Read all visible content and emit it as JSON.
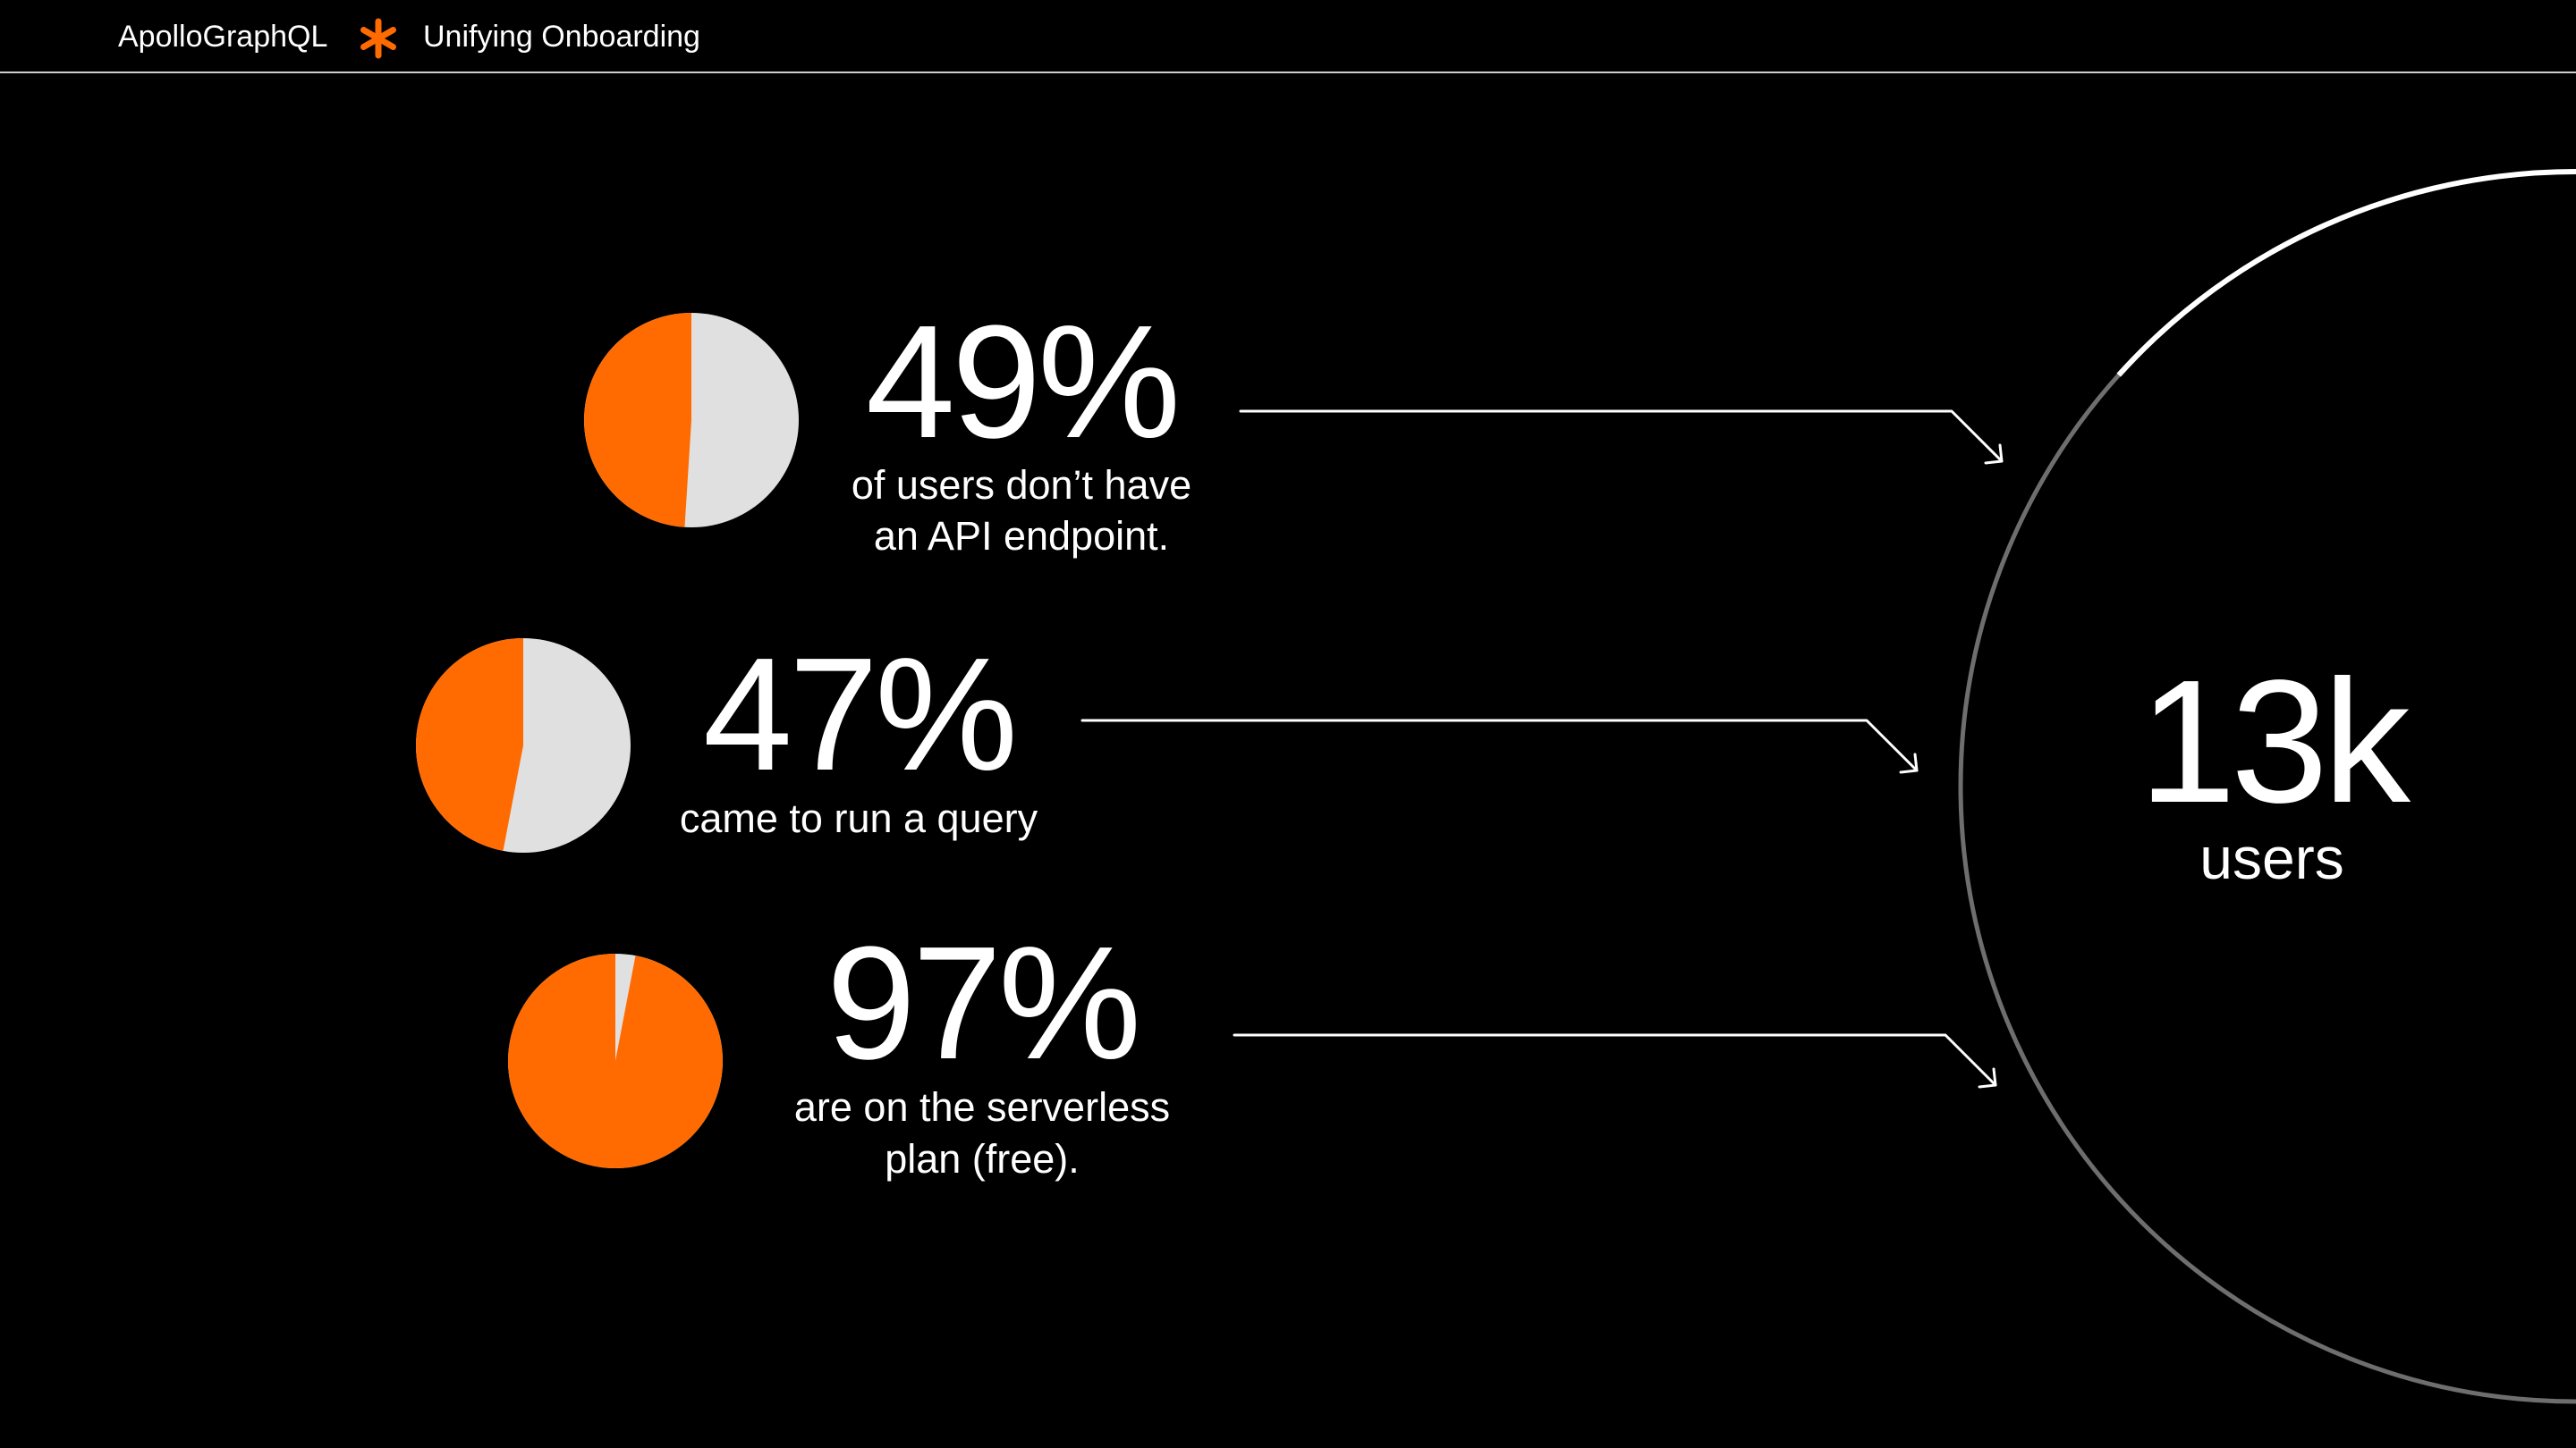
{
  "header": {
    "brand": "ApolloGraphQL",
    "deck_title": "Unifying Onboarding",
    "separator_icon": "asterisk-icon",
    "accent": "#FF6B00"
  },
  "colors": {
    "accent": "#FF6B00",
    "pie_rest": "#E0E0E0",
    "ring_highlight": "#FFFFFF",
    "ring_muted": "#6E6E6E",
    "background": "#000000"
  },
  "chart_data": {
    "type": "pie",
    "series": [
      {
        "value_label": "49%",
        "percent": 49,
        "caption_lines": [
          "of users don’t have",
          "an API endpoint."
        ]
      },
      {
        "value_label": "47%",
        "percent": 47,
        "caption_lines": [
          "came to run a query"
        ]
      },
      {
        "value_label": "97%",
        "percent": 97,
        "caption_lines": [
          "are on the serverless",
          "plan (free)."
        ]
      }
    ],
    "total": {
      "value_label": "13k",
      "unit": "users"
    }
  }
}
